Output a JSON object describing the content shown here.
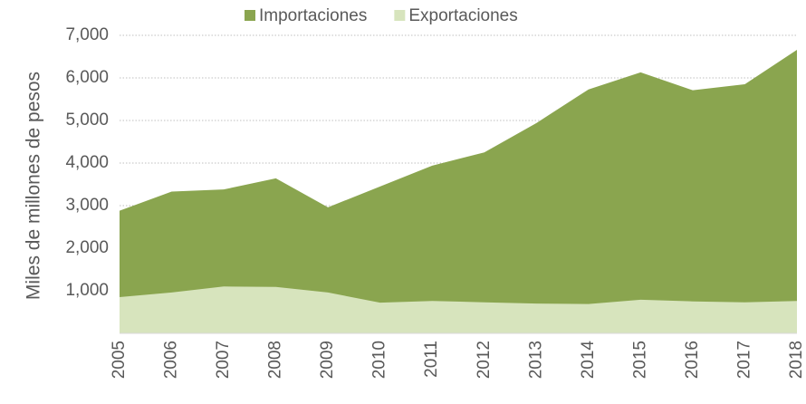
{
  "chart_data": {
    "type": "area",
    "y_label": "Miles de millones de pesos",
    "categories": [
      "2005",
      "2006",
      "2007",
      "2008",
      "2009",
      "2010",
      "2011",
      "2012",
      "2013",
      "2014",
      "2015",
      "2016",
      "2017",
      "2018"
    ],
    "series": [
      {
        "name": "Importaciones",
        "color": "#8aa54f",
        "values": [
          2880,
          3330,
          3380,
          3640,
          2960,
          3450,
          3940,
          4250,
          4940,
          5730,
          6130,
          5710,
          5850,
          6660
        ]
      },
      {
        "name": "Exportaciones",
        "color": "#d7e4bd",
        "values": [
          850,
          960,
          1100,
          1090,
          960,
          720,
          760,
          730,
          700,
          690,
          790,
          750,
          730,
          760
        ]
      }
    ],
    "ylim": [
      0,
      7000
    ],
    "yticks": [
      {
        "value": 1000,
        "label": "1,000"
      },
      {
        "value": 2000,
        "label": "2,000"
      },
      {
        "value": 3000,
        "label": "3,000"
      },
      {
        "value": 4000,
        "label": "4,000"
      },
      {
        "value": 5000,
        "label": "5,000"
      },
      {
        "value": 6000,
        "label": "6,000"
      },
      {
        "value": 7000,
        "label": "7,000"
      }
    ],
    "grid": true,
    "legend": "top"
  }
}
